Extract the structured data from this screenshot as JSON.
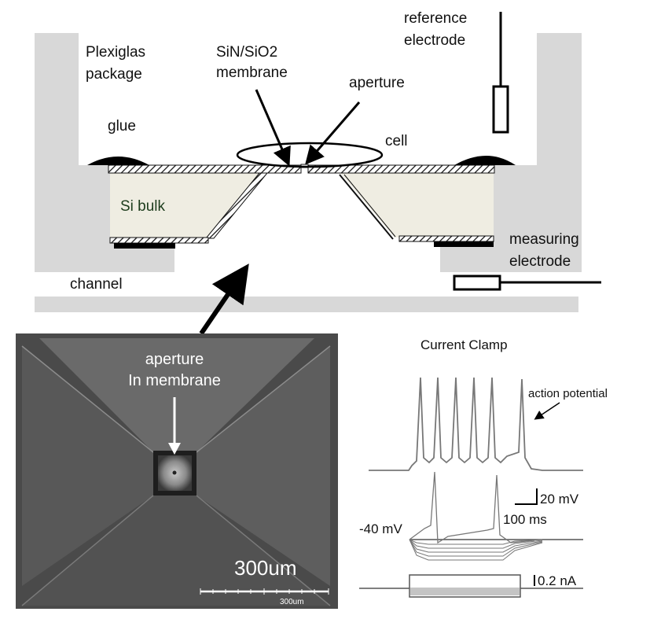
{
  "labels": {
    "package_line1": "Plexiglas",
    "package_line2": "package",
    "glue": "glue",
    "membrane_line1": "SiN/SiO2",
    "membrane_line2": "membrane",
    "aperture": "aperture",
    "cell": "cell",
    "reference_line1": "reference",
    "reference_line2": "electrode",
    "si_bulk": "Si bulk",
    "channel": "channel",
    "measuring_line1": "measuring",
    "measuring_line2": "electrode"
  },
  "sem": {
    "aperture_line1": "aperture",
    "aperture_line2": "In membrane",
    "scale_large": "300um",
    "scale_small": "300um"
  },
  "trace": {
    "title": "Current Clamp",
    "action_potential": "action potential",
    "voltage_scale": "20 mV",
    "time_scale": "100 ms",
    "baseline": "-40 mV",
    "current_scale": "0.2 nA"
  },
  "colors": {
    "plexiglas": "#d8d8d8",
    "si_bulk": "#efede2",
    "glue": "#000000",
    "sem_background": "#555555",
    "trace": "#777777"
  }
}
